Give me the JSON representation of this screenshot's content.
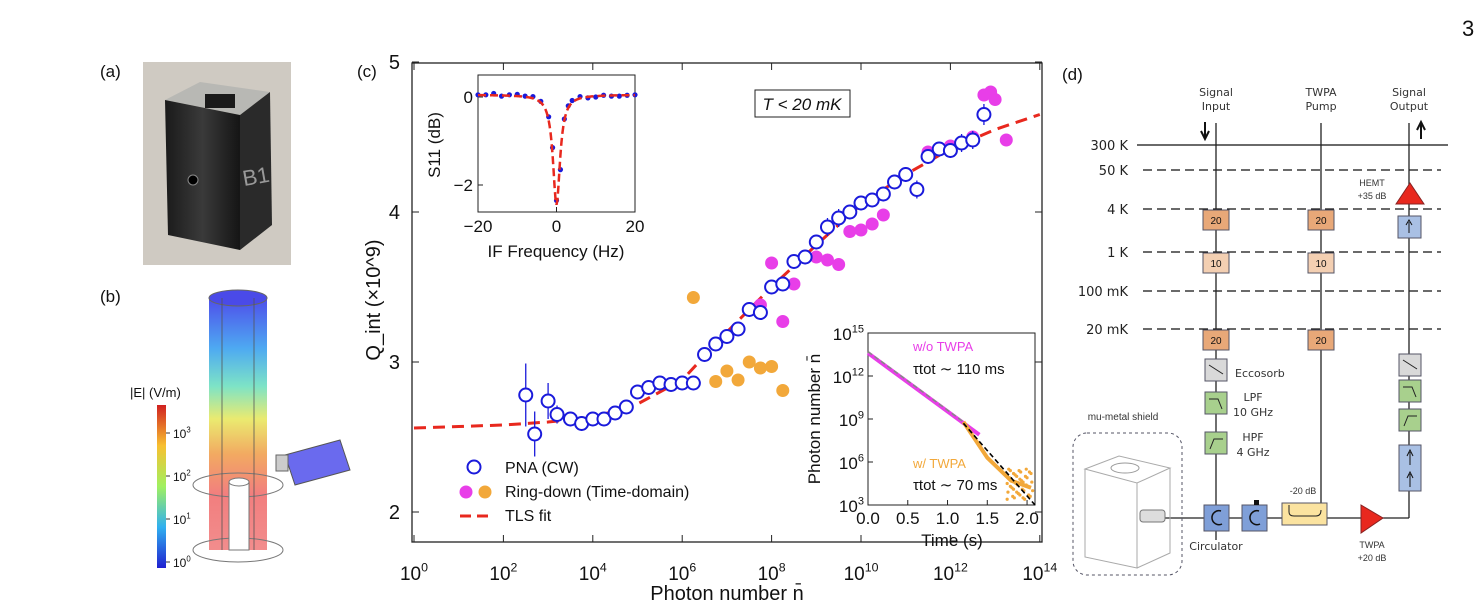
{
  "page_number": "3",
  "panels": {
    "a": {
      "label": "(a)",
      "photo_engraving": "B1"
    },
    "b": {
      "label": "(b)",
      "colorbar_title": "|E| (V/m)",
      "colorbar_ticks": [
        {
          "base": "10",
          "exp": "3"
        },
        {
          "base": "10",
          "exp": "2"
        },
        {
          "base": "10",
          "exp": "1"
        },
        {
          "base": "10",
          "exp": "0"
        }
      ]
    },
    "c": {
      "label": "(c)",
      "annotation": "T < 20 mK"
    },
    "d": {
      "label": "(d)",
      "columns": {
        "signal_input": [
          "Signal",
          "Input"
        ],
        "twpa_pump": [
          "TWPA",
          "Pump"
        ],
        "signal_output": [
          "Signal",
          "Output"
        ]
      },
      "stages": [
        "300 K",
        "50 K",
        "4 K",
        "1 K",
        "100 mK",
        "20 mK"
      ],
      "attenuators": {
        "4K": "20",
        "1K": "10",
        "20mK": "20"
      },
      "hemt": [
        "HEMT",
        "+35 dB"
      ],
      "twpa": [
        "TWPA",
        "+20 dB"
      ],
      "coupler": "-20 dB",
      "eccosorb": "Eccosorb",
      "lpf": [
        "LPF",
        "10 GHz"
      ],
      "hpf": [
        "HPF",
        "4 GHz"
      ],
      "circulator": "Circulator",
      "shield": "mu-metal shield",
      "colors": {
        "attenuator_20": "#e8a878",
        "attenuator_10": "#f3cfb2",
        "isolator": "#a9c0e4",
        "filter": "#a8d08d",
        "eccosorb": "#d9d9d9",
        "amplifier": "#e8281e",
        "coupler": "#fbe3a0"
      }
    }
  },
  "chart_data": [
    {
      "type": "scatter",
      "xlabel": "Photon number n̄",
      "ylabel": "Q_int (×10^9)",
      "xscale": "log",
      "xlim": [
        1,
        100000000000000.0
      ],
      "ylim": [
        1.8,
        5.0
      ],
      "x_ticks": [
        {
          "base": "10",
          "exp": "0"
        },
        {
          "base": "10",
          "exp": "2"
        },
        {
          "base": "10",
          "exp": "4"
        },
        {
          "base": "10",
          "exp": "6"
        },
        {
          "base": "10",
          "exp": "8"
        },
        {
          "base": "10",
          "exp": "10"
        },
        {
          "base": "10",
          "exp": "12"
        },
        {
          "base": "10",
          "exp": "14"
        }
      ],
      "y_ticks": [
        "2",
        "3",
        "4",
        "5"
      ],
      "legend_position": "bottom-left",
      "legend": [
        "PNA (CW)",
        "Ring-down (Time-domain)",
        "TLS fit"
      ],
      "series": [
        {
          "name": "PNA (CW)",
          "color": "#1a1adb",
          "marker": "open-circle",
          "log10_x": [
            2.5,
            2.7,
            3.0,
            3.2,
            3.5,
            3.75,
            4.0,
            4.25,
            4.5,
            4.75,
            5.0,
            5.25,
            5.5,
            5.75,
            6.0,
            6.25,
            6.5,
            6.75,
            7.0,
            7.25,
            7.5,
            7.75,
            8.0,
            8.25,
            8.5,
            8.75,
            9.0,
            9.25,
            9.5,
            9.75,
            10.0,
            10.25,
            10.5,
            10.75,
            11.0,
            11.25,
            11.5,
            11.75,
            12.0,
            12.25,
            12.5,
            12.75
          ],
          "y": [
            2.78,
            2.52,
            2.74,
            2.65,
            2.62,
            2.59,
            2.62,
            2.62,
            2.66,
            2.7,
            2.8,
            2.83,
            2.86,
            2.85,
            2.86,
            2.86,
            3.05,
            3.12,
            3.17,
            3.22,
            3.35,
            3.33,
            3.5,
            3.52,
            3.67,
            3.7,
            3.8,
            3.9,
            3.96,
            4.0,
            4.06,
            4.08,
            4.12,
            4.2,
            4.25,
            4.15,
            4.37,
            4.42,
            4.41,
            4.46,
            4.48,
            4.65
          ],
          "yerr": [
            0.21,
            0.15,
            0.12,
            0.06,
            0.05,
            0.05,
            0.03,
            0.03,
            0.03,
            0.04,
            0.03,
            0.03,
            0.03,
            0.03,
            0.03,
            0.03,
            0.04,
            0.04,
            0.04,
            0.04,
            0.05,
            0.05,
            0.04,
            0.04,
            0.04,
            0.05,
            0.05,
            0.06,
            0.06,
            0.05,
            0.05,
            0.04,
            0.05,
            0.05,
            0.05,
            0.06,
            0.05,
            0.05,
            0.05,
            0.06,
            0.06,
            0.07
          ]
        },
        {
          "name": "Ring-down (Time-domain)",
          "color": "#e83ee8",
          "marker": "filled-circle",
          "log10_x": [
            7.75,
            8.0,
            8.25,
            8.5,
            9.0,
            9.25,
            9.5,
            9.75,
            10.0,
            10.25,
            10.5,
            11.5,
            12.0,
            12.5,
            12.75,
            12.9,
            13.0,
            13.25
          ],
          "y": [
            3.38,
            3.66,
            3.27,
            3.52,
            3.7,
            3.68,
            3.65,
            3.87,
            3.88,
            3.92,
            3.98,
            4.4,
            4.44,
            4.5,
            4.78,
            4.8,
            4.75,
            4.48
          ]
        },
        {
          "name": "Ring-down (Time-domain)",
          "color": "#f2a83a",
          "marker": "filled-circle",
          "log10_x": [
            6.25,
            6.75,
            7.0,
            7.25,
            7.5,
            7.75,
            8.0,
            8.25
          ],
          "y": [
            3.43,
            2.87,
            2.94,
            2.88,
            3.0,
            2.96,
            2.97,
            2.81
          ]
        },
        {
          "name": "TLS fit",
          "color": "#e8281e",
          "style": "dashed",
          "log10_x": [
            0,
            1,
            2,
            3,
            4,
            5,
            6,
            7,
            8,
            9,
            10,
            11,
            12,
            13,
            14
          ],
          "y": [
            2.56,
            2.57,
            2.58,
            2.6,
            2.63,
            2.72,
            2.88,
            3.2,
            3.5,
            3.78,
            4.05,
            4.25,
            4.42,
            4.55,
            4.65
          ]
        }
      ]
    },
    {
      "type": "line",
      "xlabel": "IF Frequency (Hz)",
      "ylabel": "S11 (dB)",
      "xlim": [
        -20,
        20
      ],
      "ylim": [
        -2.6,
        0.5
      ],
      "x_ticks": [
        "−20",
        "0",
        "20"
      ],
      "y_ticks": [
        "0",
        "−2"
      ],
      "series": [
        {
          "color": "#1a1adb",
          "marker": "filled-dot",
          "x": [
            -20,
            -18,
            -16,
            -14,
            -12,
            -10,
            -8,
            -6,
            -4,
            -2,
            -1,
            0,
            1,
            2,
            3,
            4,
            6,
            8,
            10,
            12,
            14,
            16,
            18,
            20
          ],
          "y": [
            0.05,
            0.05,
            0.08,
            0.02,
            0.05,
            0.06,
            0.02,
            0.01,
            -0.1,
            -0.45,
            -1.15,
            -2.35,
            -1.65,
            -0.5,
            -0.2,
            -0.08,
            0.01,
            -0.02,
            0.0,
            0.04,
            0.02,
            0.02,
            0.04,
            0.05
          ]
        },
        {
          "color": "#e8281e",
          "style": "dashed",
          "model": "lorentzian-dip",
          "depth_db": -2.5,
          "center_hz": 0,
          "half_width_hz": 1.1
        }
      ]
    },
    {
      "type": "line",
      "xlabel": "Time (s)",
      "ylabel": "Photon number n̄",
      "yscale": "log",
      "xlim": [
        0,
        2.1
      ],
      "ylim": [
        1000.0,
        1000000000000000.0
      ],
      "x_ticks": [
        "0.0",
        "0.5",
        "1.0",
        "1.5",
        "2.0"
      ],
      "y_ticks": [
        {
          "base": "10",
          "exp": "3"
        },
        {
          "base": "10",
          "exp": "6"
        },
        {
          "base": "10",
          "exp": "9"
        },
        {
          "base": "10",
          "exp": "12"
        },
        {
          "base": "10",
          "exp": "15"
        }
      ],
      "annotations": [
        {
          "text": "w/o TWPA",
          "color": "#e83ee8"
        },
        {
          "text": "τtot ∼ 110 ms"
        },
        {
          "text": "w/ TWPA",
          "color": "#f2a83a"
        },
        {
          "text": "τtot ∼ 70 ms"
        }
      ],
      "series": [
        {
          "name": "w/o TWPA",
          "color": "#e83ee8",
          "x": [
            0.0,
            1.4
          ],
          "log10_y": [
            13.6,
            7.9
          ]
        },
        {
          "name": "w/ TWPA",
          "color": "#f2a83a",
          "x": [
            1.2,
            1.5,
            1.8,
            2.05
          ],
          "log10_y": [
            8.8,
            6.3,
            4.7,
            4.2
          ]
        },
        {
          "color": "#888888",
          "style": "dashed",
          "x": [
            0.0,
            1.2
          ],
          "log10_y": [
            13.7,
            8.8
          ]
        },
        {
          "color": "#000000",
          "style": "dashed",
          "x": [
            1.2,
            2.1
          ],
          "log10_y": [
            8.7,
            3.0
          ]
        }
      ]
    }
  ]
}
